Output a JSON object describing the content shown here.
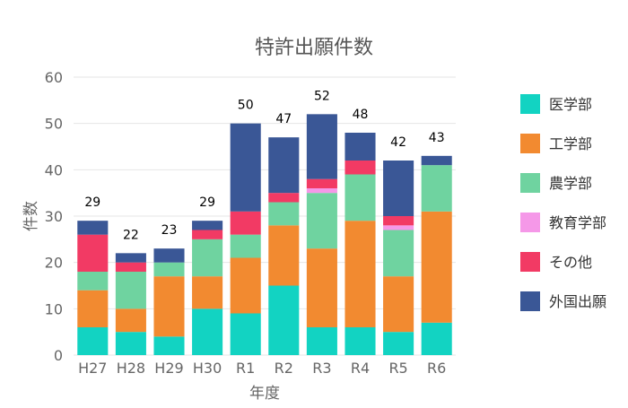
{
  "chart_data": {
    "type": "bar",
    "stacked": true,
    "title": "特許出願件数",
    "xlabel": "年度",
    "ylabel": "件数",
    "ylim": [
      0,
      60
    ],
    "yticks": [
      0,
      10,
      20,
      30,
      40,
      50,
      60
    ],
    "grid": true,
    "legend_position": "right",
    "categories": [
      "H27",
      "H28",
      "H29",
      "H30",
      "R1",
      "R2",
      "R3",
      "R4",
      "R5",
      "R6"
    ],
    "totals": [
      29,
      22,
      23,
      29,
      50,
      47,
      52,
      48,
      42,
      43
    ],
    "series": [
      {
        "name": "医学部",
        "color": "#12d3c2",
        "values": [
          6,
          5,
          4,
          10,
          9,
          15,
          6,
          6,
          5,
          7
        ]
      },
      {
        "name": "工学部",
        "color": "#f28a30",
        "values": [
          8,
          5,
          13,
          7,
          12,
          13,
          17,
          23,
          12,
          24
        ]
      },
      {
        "name": "農学部",
        "color": "#6fd3a0",
        "values": [
          4,
          8,
          3,
          8,
          5,
          5,
          12,
          10,
          10,
          10
        ]
      },
      {
        "name": "教育学部",
        "color": "#f598e8",
        "values": [
          0,
          0,
          0,
          0,
          0,
          0,
          1,
          0,
          1,
          0
        ]
      },
      {
        "name": "その他",
        "color": "#f23a64",
        "values": [
          8,
          2,
          0,
          2,
          5,
          2,
          2,
          3,
          2,
          0
        ]
      },
      {
        "name": "外国出願",
        "color": "#3a5796",
        "values": [
          3,
          2,
          3,
          2,
          19,
          12,
          14,
          6,
          12,
          2
        ]
      }
    ]
  }
}
